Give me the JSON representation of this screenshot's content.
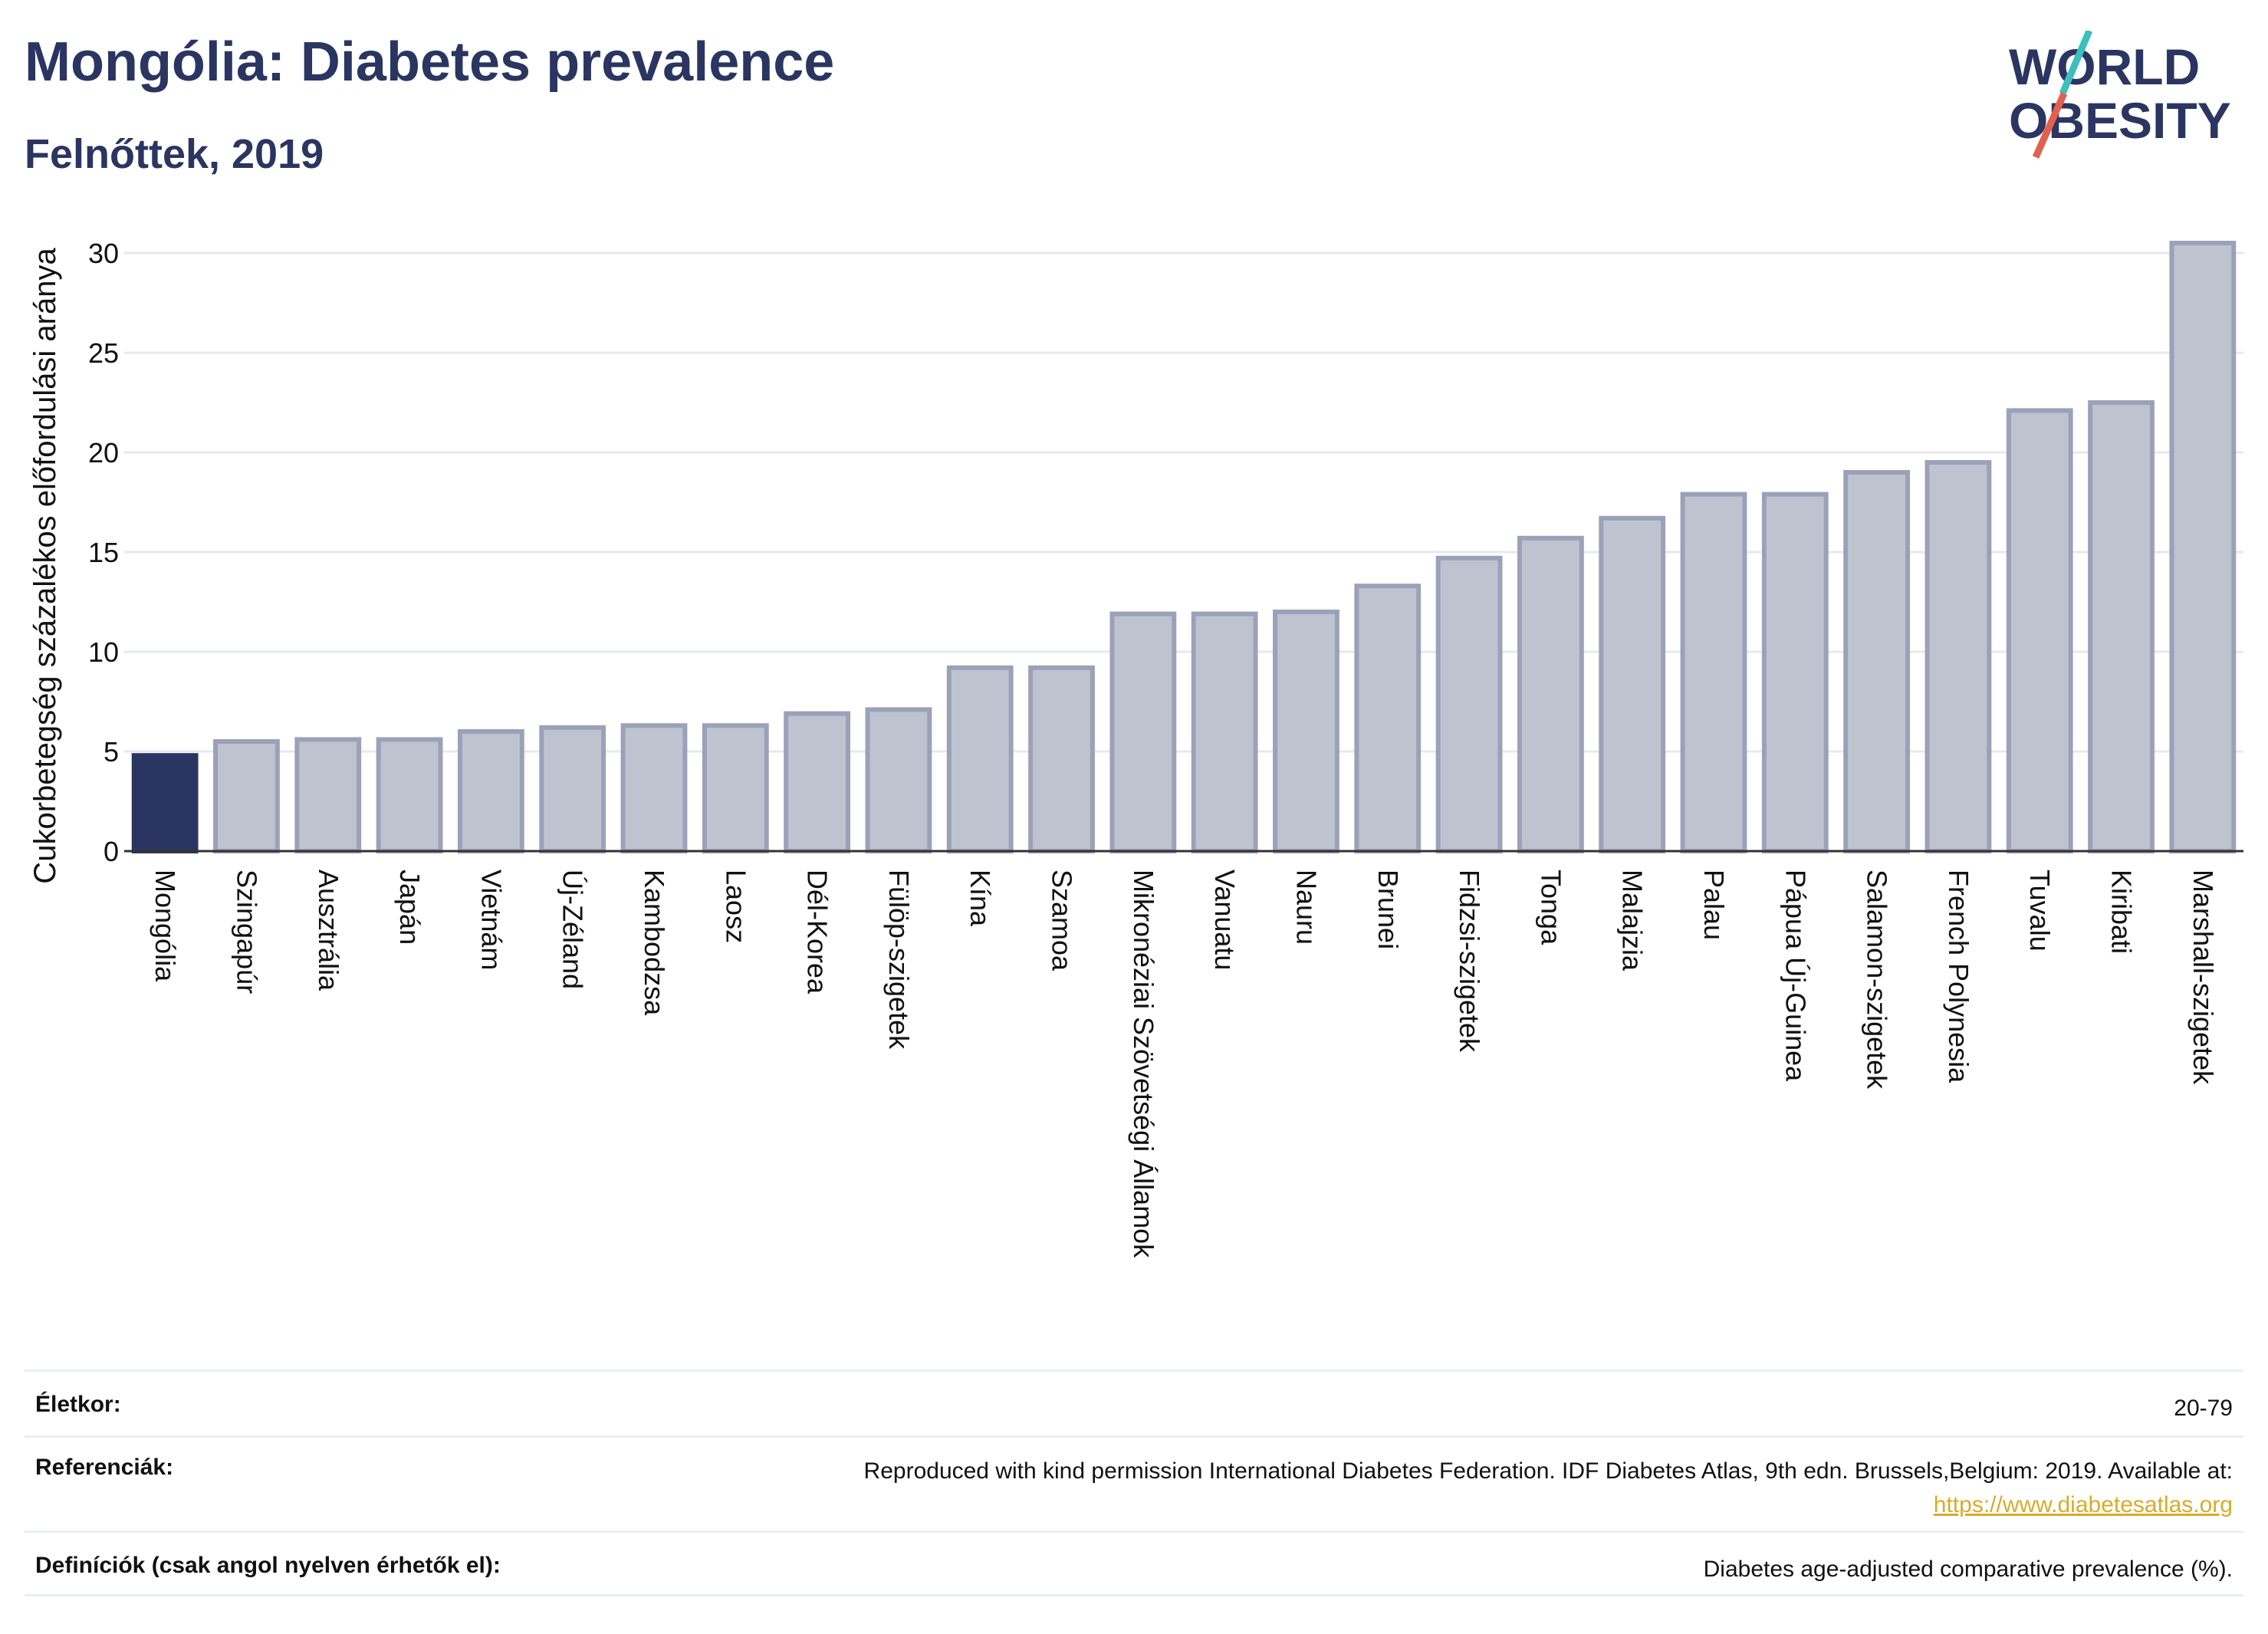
{
  "header": {
    "title": "Mongólia: Diabetes prevalence",
    "subtitle": "Felnőttek, 2019"
  },
  "logo": {
    "line1": "WORLD",
    "line2": "OBESITY",
    "text_color": "#2b3561",
    "slash_colors": [
      "#e4604e",
      "#3bbfbf"
    ]
  },
  "chart_data": {
    "type": "bar",
    "title": "Mongólia: Diabetes prevalence",
    "subtitle": "Felnőttek, 2019",
    "xlabel": "",
    "ylabel": "Cukorbetegség százalékos előfordulási aránya",
    "ylim": [
      0,
      32
    ],
    "yticks": [
      0,
      5,
      10,
      15,
      20,
      25,
      30
    ],
    "grid": true,
    "highlight_category": "Mongólia",
    "colors": {
      "highlight": "#2b3561",
      "bar_fill": "#bfc3d0",
      "bar_stroke": "#9ba1b8",
      "grid": "#e6e9ed",
      "axis": "#333333"
    },
    "categories": [
      "Mongólia",
      "Szingapúr",
      "Ausztrália",
      "Japán",
      "Vietnám",
      "Új-Zéland",
      "Kambodzsa",
      "Laosz",
      "Dél-Korea",
      "Fülöp-szigetek",
      "Kína",
      "Szamoa",
      "Mikronéziai Szövetségi Államok",
      "Vanuatu",
      "Nauru",
      "Brunei",
      "Fidzsi-szigetek",
      "Tonga",
      "Malajzia",
      "Palau",
      "Pápua Új-Guinea",
      "Salamon-szigetek",
      "French Polynesia",
      "Tuvalu",
      "Kiribati",
      "Marshall-szigetek"
    ],
    "values": [
      4.8,
      5.5,
      5.6,
      5.6,
      6.0,
      6.2,
      6.3,
      6.3,
      6.9,
      7.1,
      9.2,
      9.2,
      11.9,
      11.9,
      12.0,
      13.3,
      14.7,
      15.7,
      16.7,
      17.9,
      17.9,
      19.0,
      19.5,
      22.1,
      22.5,
      30.5
    ]
  },
  "meta": {
    "age_label": "Életkor:",
    "age_value": "20-79",
    "ref_label": "Referenciák:",
    "ref_text": "Reproduced with kind permission International Diabetes Federation. IDF Diabetes Atlas, 9th edn. Brussels,Belgium: 2019. Available at:",
    "ref_link": "https://www.diabetesatlas.org",
    "def_label": "Definíciók (csak angol nyelven érhetők el):",
    "def_value": "Diabetes age-adjusted comparative prevalence (%)."
  }
}
